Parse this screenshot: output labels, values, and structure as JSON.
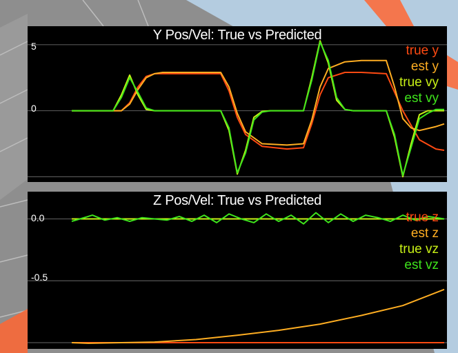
{
  "colors": {
    "true_pos": "#ff4a12",
    "est_pos": "#ffae22",
    "true_vel": "#c8f016",
    "est_vel": "#3fe51c",
    "background": "#000000",
    "grid": "#555555",
    "scene_sky": "#b4cce0",
    "scene_floor": "#8e8e8e",
    "scene_accent": "#ff6633"
  },
  "chart_data": [
    {
      "type": "line",
      "title": "Y Pos/Vel: True vs Predicted",
      "yticks": [
        {
          "value": 5,
          "label": "5"
        },
        {
          "value": 0,
          "label": "0"
        }
      ],
      "gridlines": [
        5,
        0,
        -5
      ],
      "ylim": [
        -5.4,
        6.4
      ],
      "xlim": [
        0,
        10
      ],
      "legend": "top-right",
      "series": [
        {
          "name": "true y",
          "color_key": "true_pos",
          "x": [
            1,
            2.2,
            2.4,
            2.6,
            2.8,
            3.0,
            3.2,
            4.6,
            4.8,
            5.0,
            5.2,
            5.6,
            6.2,
            6.6,
            6.8,
            7.0,
            7.2,
            7.6,
            8.0,
            8.6,
            9.0,
            9.4,
            9.8,
            10
          ],
          "y": [
            0,
            0,
            0.6,
            1.8,
            2.6,
            2.8,
            2.8,
            2.8,
            1.5,
            -0.5,
            -1.8,
            -2.7,
            -2.9,
            -2.8,
            -1.0,
            1.2,
            2.5,
            2.9,
            2.9,
            2.8,
            0,
            -2.2,
            -2.9,
            -3.0
          ]
        },
        {
          "name": "est y",
          "color_key": "est_pos",
          "x": [
            1,
            2.2,
            2.4,
            2.6,
            2.8,
            3.0,
            3.2,
            4.6,
            4.8,
            5.0,
            5.2,
            5.6,
            6.2,
            6.6,
            6.8,
            7.0,
            7.2,
            7.6,
            8.0,
            8.6,
            8.8,
            9.0,
            9.2,
            9.4,
            9.8,
            10
          ],
          "y": [
            0,
            0,
            0.5,
            1.6,
            2.5,
            2.8,
            2.9,
            2.9,
            1.8,
            -0.2,
            -1.6,
            -2.5,
            -2.6,
            -2.5,
            -0.7,
            1.8,
            3.2,
            3.7,
            3.8,
            3.8,
            1.8,
            -0.6,
            -1.3,
            -1.5,
            -1.2,
            -1.0
          ]
        },
        {
          "name": "true vy",
          "color_key": "true_vel",
          "x": [
            1,
            2.0,
            2.2,
            2.4,
            2.6,
            2.8,
            3.0,
            3.2,
            4.6,
            4.8,
            5.0,
            5.2,
            5.4,
            5.6,
            5.8,
            6.0,
            6.6,
            6.8,
            7.0,
            7.2,
            7.4,
            7.6,
            7.8,
            8.6,
            8.8,
            9.0,
            9.2,
            9.4,
            9.6,
            9.8,
            10
          ],
          "y": [
            0,
            0,
            1.2,
            2.7,
            1.2,
            0.1,
            0,
            0,
            0,
            -1.5,
            -4.8,
            -3.0,
            -0.5,
            -0.05,
            0,
            0,
            0,
            2.5,
            5.3,
            3.6,
            0.8,
            0.1,
            0,
            0,
            -2.0,
            -5.0,
            -2.5,
            -0.3,
            0,
            0,
            0
          ]
        },
        {
          "name": "est vy",
          "color_key": "est_vel",
          "x": [
            1,
            2.0,
            2.2,
            2.4,
            2.6,
            2.8,
            3.0,
            3.2,
            4.6,
            4.8,
            5.0,
            5.2,
            5.4,
            5.6,
            5.8,
            6.0,
            6.6,
            6.8,
            7.0,
            7.2,
            7.4,
            7.6,
            7.8,
            8.6,
            8.8,
            9.0,
            9.2,
            9.4,
            9.6,
            9.8,
            10
          ],
          "y": [
            0,
            0,
            1.0,
            2.5,
            1.4,
            0.2,
            0,
            0,
            0,
            -1.3,
            -4.7,
            -3.2,
            -0.7,
            -0.1,
            0,
            0,
            0,
            2.3,
            5.2,
            3.8,
            1.0,
            0.1,
            0,
            0,
            -1.8,
            -4.9,
            -2.8,
            -0.6,
            -0.2,
            0.1,
            0.1
          ]
        }
      ]
    },
    {
      "type": "line",
      "title": "Z Pos/Vel: True vs Predicted",
      "yticks": [
        {
          "value": 0.0,
          "label": "0.0"
        },
        {
          "value": -0.5,
          "label": "-0.5"
        }
      ],
      "gridlines": [
        0.0,
        -0.5,
        -1.0
      ],
      "ylim": [
        -1.05,
        0.22
      ],
      "xlim": [
        0,
        10
      ],
      "legend": "top-right",
      "series": [
        {
          "name": "true z",
          "color_key": "true_pos",
          "x": [
            1,
            10
          ],
          "y": [
            -1.0,
            -1.0
          ]
        },
        {
          "name": "est z",
          "color_key": "est_pos",
          "x": [
            1,
            1.4,
            3.0,
            4.0,
            5.0,
            6.0,
            7.0,
            8.0,
            9.0,
            10
          ],
          "y": [
            -1.0,
            -1.005,
            -0.995,
            -0.975,
            -0.94,
            -0.9,
            -0.85,
            -0.78,
            -0.7,
            -0.57
          ]
        },
        {
          "name": "true vz",
          "color_key": "true_vel",
          "x": [
            1,
            2,
            3,
            4,
            5,
            6,
            7,
            8,
            9,
            10
          ],
          "y": [
            0,
            0,
            0,
            0,
            0,
            0,
            0,
            0,
            0,
            0
          ]
        },
        {
          "name": "est vz",
          "color_key": "est_vel",
          "x": [
            1,
            1.2,
            1.5,
            1.8,
            2.1,
            2.4,
            2.7,
            3.0,
            3.3,
            3.6,
            3.9,
            4.2,
            4.5,
            4.8,
            5.1,
            5.4,
            5.7,
            6.0,
            6.3,
            6.6,
            6.9,
            7.2,
            7.5,
            7.8,
            8.1,
            8.4,
            8.7,
            9.0,
            9.3,
            9.6,
            10
          ],
          "y": [
            -0.02,
            0.0,
            0.03,
            -0.01,
            0.01,
            -0.02,
            0.01,
            0.0,
            -0.01,
            0.02,
            -0.02,
            0.03,
            -0.03,
            0.04,
            0.0,
            -0.03,
            0.04,
            -0.02,
            0.03,
            -0.04,
            0.05,
            -0.03,
            0.04,
            -0.02,
            0.03,
            0.01,
            -0.02,
            0.03,
            -0.01,
            0.02,
            0.0
          ]
        }
      ]
    }
  ]
}
